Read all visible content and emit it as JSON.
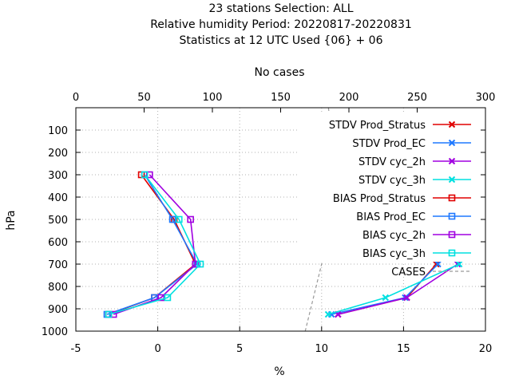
{
  "title_lines": [
    "23 stations Selection: ALL",
    "Relative humidity  Period: 20220817-20220831",
    "Statistics at 12 UTC  Used {06} + 06"
  ],
  "chart_data": {
    "type": "line",
    "xlabel": "%",
    "ylabel": "hPa",
    "x2label": "No cases",
    "xlim": [
      -5,
      20
    ],
    "x2lim": [
      0,
      300
    ],
    "ylim": [
      1000,
      0
    ],
    "y_inverted": true,
    "xticks": [
      "-5",
      "0",
      "5",
      "10",
      "15",
      "20"
    ],
    "x2ticks": [
      "0",
      "50",
      "100",
      "150",
      "200",
      "250",
      "300"
    ],
    "yticks": [
      "100",
      "200",
      "300",
      "400",
      "500",
      "600",
      "700",
      "800",
      "900",
      "1000"
    ],
    "grid": true,
    "legend_position": "top-right",
    "series": [
      {
        "name": "STDV Prod_Stratus",
        "color": "#e00000",
        "marker": "x",
        "points": [
          [
            14.0,
            300
          ],
          [
            16.0,
            500
          ],
          [
            17.0,
            700
          ],
          [
            15.2,
            850
          ],
          [
            11.0,
            925
          ]
        ]
      },
      {
        "name": "STDV Prod_EC",
        "color": "#1e78ff",
        "marker": "x",
        "points": [
          [
            13.9,
            300
          ],
          [
            16.0,
            500
          ],
          [
            17.1,
            700
          ],
          [
            15.1,
            850
          ],
          [
            10.6,
            925
          ]
        ]
      },
      {
        "name": "STDV cyc_2h",
        "color": "#a000e0",
        "marker": "x",
        "points": [
          [
            14.0,
            300
          ],
          [
            16.0,
            500
          ],
          [
            18.3,
            700
          ],
          [
            15.2,
            850
          ],
          [
            11.0,
            925
          ]
        ]
      },
      {
        "name": "STDV cyc_3h",
        "color": "#00e0e0",
        "marker": "x",
        "points": [
          [
            14.1,
            300
          ],
          [
            16.1,
            500
          ],
          [
            18.4,
            700
          ],
          [
            13.9,
            850
          ],
          [
            10.4,
            925
          ]
        ]
      },
      {
        "name": "BIAS Prod_Stratus",
        "color": "#e00000",
        "marker": "square",
        "points": [
          [
            -1.0,
            300
          ],
          [
            1.0,
            500
          ],
          [
            2.3,
            700
          ],
          [
            -0.2,
            850
          ],
          [
            -3.0,
            925
          ]
        ]
      },
      {
        "name": "BIAS Prod_EC",
        "color": "#1e78ff",
        "marker": "square",
        "points": [
          [
            -0.8,
            300
          ],
          [
            0.9,
            500
          ],
          [
            2.4,
            700
          ],
          [
            -0.2,
            850
          ],
          [
            -3.1,
            925
          ]
        ]
      },
      {
        "name": "BIAS cyc_2h",
        "color": "#a000e0",
        "marker": "square",
        "points": [
          [
            -0.5,
            300
          ],
          [
            2.0,
            500
          ],
          [
            2.3,
            700
          ],
          [
            0.2,
            850
          ],
          [
            -2.7,
            925
          ]
        ]
      },
      {
        "name": "BIAS cyc_3h",
        "color": "#00e0e0",
        "marker": "square",
        "points": [
          [
            -0.8,
            300
          ],
          [
            1.3,
            500
          ],
          [
            2.6,
            700
          ],
          [
            0.6,
            850
          ],
          [
            -3.0,
            925
          ]
        ]
      }
    ],
    "cases": {
      "name": "CASES",
      "color": "#999999",
      "dash": true,
      "points": [
        [
          185,
          0
        ],
        [
          187,
          100
        ],
        [
          188,
          200
        ],
        [
          188,
          300
        ],
        [
          188,
          400
        ],
        [
          186,
          500
        ],
        [
          183,
          600
        ],
        [
          180,
          700
        ],
        [
          176,
          800
        ],
        [
          172,
          900
        ],
        [
          168,
          1000
        ]
      ]
    }
  }
}
